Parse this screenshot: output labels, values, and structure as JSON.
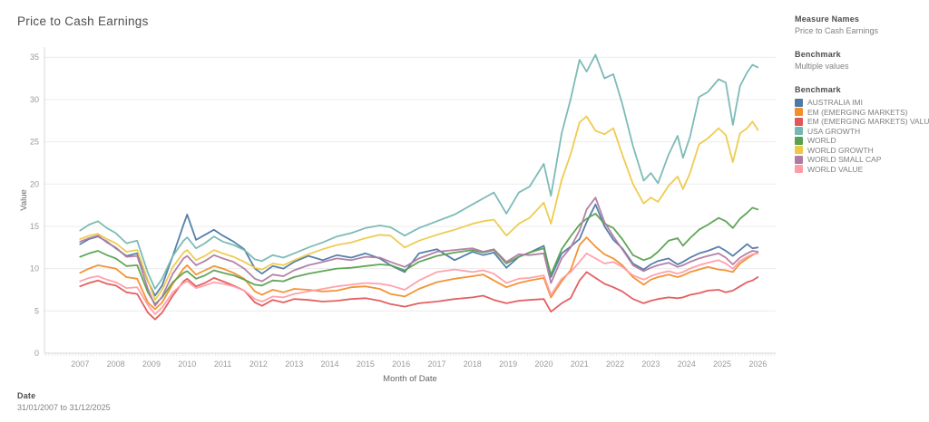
{
  "title": "Price to Cash Earnings",
  "legend_panel": {
    "measure_names": {
      "label": "Measure Names",
      "value": "Price to Cash Earnings"
    },
    "benchmark_filter": {
      "label": "Benchmark",
      "value": "Multiple values"
    },
    "color_legend": {
      "label": "Benchmark",
      "items": [
        {
          "label": "AUSTRALIA IMI",
          "color": "#4e79a7"
        },
        {
          "label": "EM (EMERGING MARKETS)",
          "color": "#f28e2b"
        },
        {
          "label": "EM (EMERGING MARKETS) VALUE",
          "color": "#e15759"
        },
        {
          "label": "USA GROWTH",
          "color": "#76b7b2"
        },
        {
          "label": "WORLD",
          "color": "#59a14f"
        },
        {
          "label": "WORLD GROWTH",
          "color": "#edc948"
        },
        {
          "label": "WORLD SMALL CAP",
          "color": "#b07aa1"
        },
        {
          "label": "WORLD VALUE",
          "color": "#ff9da7"
        }
      ]
    }
  },
  "date_filter": {
    "label": "Date",
    "value": "31/01/2007 to 31/12/2025"
  },
  "chart_data": {
    "type": "line",
    "title": "Price to Cash Earnings",
    "xlabel": "Month of Date",
    "ylabel": "Value",
    "grid": "horizontal",
    "legend_position": "right",
    "xlim": [
      2006.0,
      2026.5
    ],
    "ylim": [
      0,
      36.2
    ],
    "y_ticks": [
      0,
      5,
      10,
      15,
      20,
      25,
      30,
      35
    ],
    "x_tick_years": [
      2007,
      2008,
      2009,
      2010,
      2011,
      2012,
      2013,
      2014,
      2015,
      2016,
      2017,
      2018,
      2019,
      2020,
      2021,
      2022,
      2023,
      2024,
      2025,
      2026
    ],
    "x": [
      2007.0,
      2007.25,
      2007.5,
      2007.75,
      2008.0,
      2008.3,
      2008.6,
      2008.9,
      2009.1,
      2009.3,
      2009.6,
      2009.9,
      2010.0,
      2010.25,
      2010.5,
      2010.75,
      2011.0,
      2011.3,
      2011.6,
      2011.9,
      2012.1,
      2012.4,
      2012.7,
      2013.0,
      2013.4,
      2013.8,
      2014.2,
      2014.6,
      2015.0,
      2015.4,
      2015.7,
      2016.1,
      2016.5,
      2017.0,
      2017.5,
      2018.0,
      2018.3,
      2018.6,
      2018.95,
      2019.3,
      2019.6,
      2020.0,
      2020.2,
      2020.5,
      2020.75,
      2021.0,
      2021.2,
      2021.45,
      2021.7,
      2021.95,
      2022.2,
      2022.5,
      2022.8,
      2023.0,
      2023.2,
      2023.5,
      2023.75,
      2023.9,
      2024.1,
      2024.35,
      2024.6,
      2024.9,
      2025.1,
      2025.3,
      2025.5,
      2025.7,
      2025.85,
      2026.0
    ],
    "series": [
      {
        "name": "AUSTRALIA IMI",
        "color": "#4e79a7",
        "values": [
          12.9,
          13.5,
          13.8,
          13.2,
          12.4,
          11.5,
          11.8,
          8.5,
          6.8,
          8.0,
          11.5,
          15.2,
          16.4,
          13.4,
          14.0,
          14.6,
          13.9,
          13.2,
          12.3,
          10.0,
          9.4,
          10.3,
          10.0,
          10.8,
          11.5,
          11.0,
          11.6,
          11.3,
          11.8,
          11.2,
          10.4,
          9.6,
          11.8,
          12.3,
          11.0,
          12.0,
          11.6,
          11.9,
          10.1,
          11.4,
          11.9,
          12.7,
          9.0,
          11.8,
          12.6,
          13.5,
          15.5,
          17.6,
          15.0,
          13.4,
          12.4,
          10.6,
          9.9,
          10.5,
          10.9,
          11.2,
          10.5,
          10.8,
          11.3,
          11.8,
          12.1,
          12.6,
          12.1,
          11.5,
          12.2,
          12.9,
          12.4,
          12.5
        ]
      },
      {
        "name": "EM (EMERGING MARKETS)",
        "color": "#f28e2b",
        "values": [
          9.5,
          10.0,
          10.4,
          10.2,
          10.0,
          9.0,
          8.8,
          6.0,
          5.2,
          6.0,
          8.2,
          10.0,
          10.4,
          9.3,
          9.8,
          10.3,
          10.0,
          9.5,
          8.8,
          7.3,
          6.9,
          7.5,
          7.2,
          7.6,
          7.5,
          7.3,
          7.4,
          7.8,
          7.9,
          7.6,
          7.0,
          6.7,
          7.6,
          8.4,
          8.8,
          9.1,
          9.3,
          8.6,
          7.8,
          8.3,
          8.6,
          8.9,
          6.6,
          8.5,
          9.8,
          12.8,
          13.7,
          12.6,
          11.7,
          11.2,
          10.4,
          9.0,
          8.1,
          8.7,
          9.0,
          9.3,
          9.0,
          9.2,
          9.6,
          9.9,
          10.2,
          9.9,
          9.8,
          9.6,
          10.6,
          11.2,
          11.6,
          11.9
        ]
      },
      {
        "name": "EM (EMERGING MARKETS) VALUE",
        "color": "#e15759",
        "values": [
          7.9,
          8.3,
          8.6,
          8.2,
          8.0,
          7.2,
          7.0,
          4.8,
          4.0,
          4.8,
          6.8,
          8.5,
          8.8,
          7.9,
          8.3,
          8.9,
          8.5,
          8.0,
          7.4,
          6.0,
          5.6,
          6.3,
          6.0,
          6.4,
          6.3,
          6.1,
          6.2,
          6.4,
          6.5,
          6.2,
          5.8,
          5.5,
          5.9,
          6.1,
          6.4,
          6.6,
          6.8,
          6.3,
          5.9,
          6.2,
          6.3,
          6.4,
          4.9,
          5.9,
          6.5,
          8.6,
          9.6,
          8.9,
          8.2,
          7.8,
          7.3,
          6.4,
          5.9,
          6.2,
          6.4,
          6.6,
          6.5,
          6.6,
          6.9,
          7.1,
          7.4,
          7.5,
          7.2,
          7.4,
          7.9,
          8.4,
          8.6,
          9.0
        ]
      },
      {
        "name": "USA GROWTH",
        "color": "#76b7b2",
        "values": [
          14.5,
          15.2,
          15.6,
          14.8,
          14.2,
          13.0,
          13.3,
          9.5,
          7.6,
          8.8,
          11.5,
          13.3,
          13.7,
          12.4,
          13.0,
          13.8,
          13.2,
          12.8,
          12.2,
          11.1,
          10.9,
          11.6,
          11.3,
          11.8,
          12.5,
          13.1,
          13.8,
          14.2,
          14.8,
          15.1,
          14.9,
          13.9,
          14.8,
          15.6,
          16.4,
          17.6,
          18.3,
          19.0,
          16.5,
          19.0,
          19.7,
          22.4,
          18.6,
          26.0,
          30.0,
          34.7,
          33.3,
          35.3,
          32.5,
          33.0,
          29.5,
          24.5,
          20.4,
          21.3,
          20.1,
          23.5,
          25.7,
          23.1,
          25.6,
          30.3,
          30.9,
          32.4,
          32.0,
          27.0,
          31.6,
          33.2,
          34.1,
          33.8
        ]
      },
      {
        "name": "WORLD",
        "color": "#59a14f",
        "values": [
          11.4,
          11.8,
          12.1,
          11.6,
          11.2,
          10.3,
          10.4,
          7.2,
          5.8,
          6.6,
          8.4,
          9.5,
          9.7,
          8.8,
          9.2,
          9.8,
          9.5,
          9.2,
          8.7,
          8.1,
          8.0,
          8.6,
          8.5,
          9.0,
          9.4,
          9.7,
          10.0,
          10.1,
          10.3,
          10.5,
          10.4,
          9.8,
          10.8,
          11.5,
          11.9,
          12.2,
          11.9,
          12.2,
          10.6,
          11.4,
          11.9,
          12.4,
          9.3,
          12.3,
          13.8,
          15.2,
          15.9,
          16.5,
          15.3,
          14.8,
          13.5,
          11.6,
          11.0,
          11.3,
          12.0,
          13.3,
          13.6,
          12.7,
          13.6,
          14.6,
          15.2,
          16.0,
          15.6,
          14.8,
          15.9,
          16.6,
          17.2,
          17.0
        ]
      },
      {
        "name": "WORLD GROWTH",
        "color": "#edc948",
        "values": [
          13.5,
          13.9,
          14.1,
          13.5,
          13.0,
          12.0,
          12.2,
          8.6,
          6.3,
          7.5,
          10.2,
          11.9,
          12.2,
          11.0,
          11.5,
          12.2,
          11.8,
          11.4,
          10.8,
          10.1,
          9.9,
          10.6,
          10.4,
          11.0,
          11.7,
          12.3,
          12.8,
          13.1,
          13.6,
          14.0,
          13.9,
          12.5,
          13.3,
          14.0,
          14.6,
          15.3,
          15.6,
          15.8,
          13.9,
          15.3,
          16.0,
          17.8,
          15.3,
          20.5,
          23.5,
          27.3,
          28.0,
          26.3,
          25.9,
          26.6,
          23.5,
          20.0,
          17.7,
          18.4,
          17.9,
          19.8,
          20.9,
          19.4,
          21.3,
          24.7,
          25.4,
          26.6,
          25.8,
          22.6,
          26.0,
          26.6,
          27.4,
          26.4
        ]
      },
      {
        "name": "WORLD SMALL CAP",
        "color": "#b07aa1",
        "values": [
          13.2,
          13.6,
          13.9,
          13.1,
          12.5,
          11.4,
          11.5,
          7.6,
          5.6,
          6.7,
          9.4,
          11.2,
          11.5,
          10.4,
          10.9,
          11.6,
          11.2,
          10.8,
          10.0,
          8.8,
          8.5,
          9.3,
          9.1,
          9.8,
          10.4,
          10.8,
          11.2,
          11.0,
          11.4,
          11.3,
          10.8,
          10.2,
          11.2,
          12.0,
          12.2,
          12.4,
          12.0,
          12.3,
          10.8,
          11.7,
          11.6,
          11.8,
          8.3,
          11.2,
          12.5,
          14.5,
          17.0,
          18.4,
          15.5,
          13.8,
          12.3,
          10.4,
          9.7,
          10.1,
          10.4,
          10.7,
          10.2,
          10.4,
          10.8,
          11.2,
          11.5,
          11.8,
          11.3,
          10.5,
          11.3,
          11.8,
          12.1,
          12.0
        ]
      },
      {
        "name": "WORLD VALUE",
        "color": "#ff9da7",
        "values": [
          8.5,
          8.9,
          9.1,
          8.7,
          8.4,
          7.7,
          7.8,
          5.7,
          4.6,
          5.4,
          7.2,
          8.3,
          8.5,
          7.7,
          8.0,
          8.4,
          8.2,
          7.9,
          7.4,
          6.4,
          6.1,
          6.7,
          6.6,
          7.0,
          7.3,
          7.6,
          7.9,
          8.1,
          8.3,
          8.2,
          8.0,
          7.5,
          8.6,
          9.6,
          9.9,
          9.6,
          9.8,
          9.4,
          8.3,
          8.8,
          8.9,
          9.2,
          6.9,
          8.8,
          9.6,
          10.8,
          11.8,
          11.2,
          10.6,
          10.8,
          10.2,
          9.2,
          8.7,
          9.1,
          9.4,
          9.7,
          9.4,
          9.6,
          10.0,
          10.4,
          10.7,
          11.0,
          10.6,
          10.0,
          10.9,
          11.4,
          11.7,
          11.8
        ]
      }
    ]
  }
}
